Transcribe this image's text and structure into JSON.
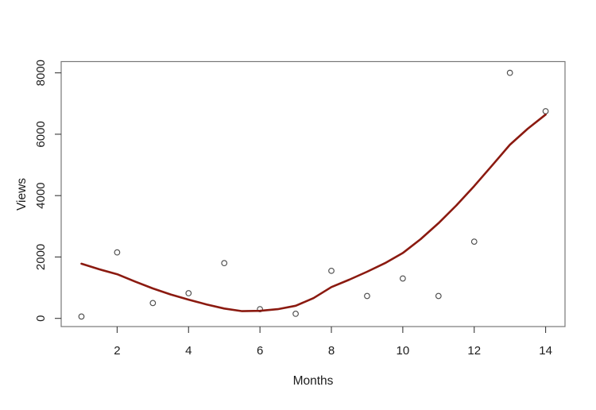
{
  "figure": {
    "background": "#ffffff",
    "kind": "r-base-scatterplot-with-fit"
  },
  "chart_data": {
    "type": "scatter",
    "title": "",
    "xlabel": "Months",
    "ylabel": "Views",
    "grid": false,
    "legend": null,
    "xlim": [
      0.433,
      14.543
    ],
    "ylim": [
      -267,
      8367
    ],
    "x_ticks": [
      2,
      4,
      6,
      8,
      10,
      12,
      14
    ],
    "y_ticks": [
      0,
      2000,
      4000,
      6000,
      8000
    ],
    "points": {
      "marker": "open-circle",
      "color": "#4d4d4d",
      "x": [
        1,
        2,
        3,
        4,
        5,
        6,
        7,
        8,
        9,
        10,
        11,
        12,
        13,
        14
      ],
      "y": [
        60,
        2150,
        500,
        820,
        1800,
        300,
        150,
        1550,
        730,
        1300,
        730,
        2500,
        8000,
        6750
      ]
    },
    "fit_curve": {
      "name": "smooth-fit-line",
      "color": "#8b1a10",
      "width": 2.6,
      "x": [
        1,
        1.5,
        2,
        2.5,
        3,
        3.5,
        4,
        4.5,
        5,
        5.5,
        6,
        6.5,
        7,
        7.5,
        8,
        8.5,
        9,
        9.5,
        10,
        10.5,
        11,
        11.5,
        12,
        12.5,
        13,
        13.5,
        14
      ],
      "y": [
        1780,
        1600,
        1440,
        1200,
        975,
        780,
        610,
        455,
        320,
        235,
        245,
        300,
        410,
        660,
        1020,
        1260,
        1520,
        1800,
        2130,
        2580,
        3100,
        3680,
        4310,
        4980,
        5660,
        6180,
        6640
      ]
    },
    "style": {
      "axis_color": "#777777",
      "tick_color": "#3a3a3a",
      "text_color": "#1c1c1c",
      "point_radius": 3.3,
      "point_stroke_width": 1.15
    }
  }
}
